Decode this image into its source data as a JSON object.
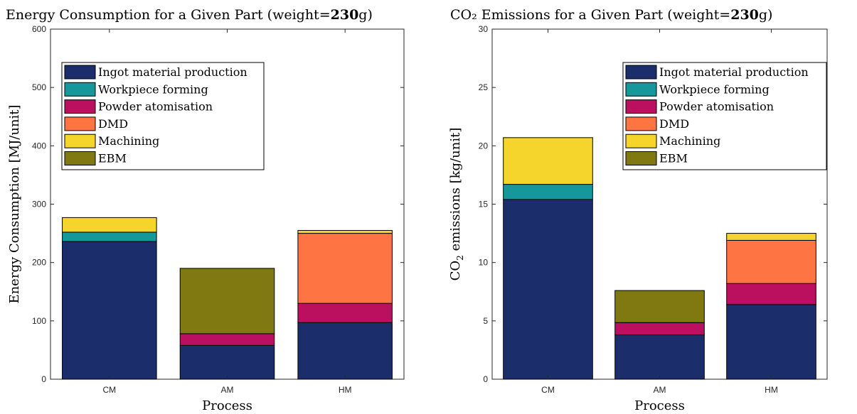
{
  "colors": {
    "Ingot material production": "#1b2e6b",
    "Workpiece forming": "#16979c",
    "Powder atomisation": "#bb1060",
    "DMD": "#fe7442",
    "Machining": "#f5d52b",
    "EBM": "#807912"
  },
  "chart_data": [
    {
      "type": "bar",
      "stacked": true,
      "title_prefix": "Energy Consumption for a Given Part (weight=",
      "title_bold": "230",
      "title_suffix": "g)",
      "xlabel": "Process",
      "ylabel": "Energy Consumption [MJ/unit]",
      "ylabel_main": "Energy Consumption [MJ/unit]",
      "ylabel_sub": "",
      "ylabel_rest": "",
      "ylim": [
        0,
        600
      ],
      "yticks": [
        "0",
        "100",
        "200",
        "300",
        "400",
        "500",
        "600"
      ],
      "categories": [
        "CM",
        "AM",
        "HM"
      ],
      "legend_position": "upper-left",
      "legend": [
        "Ingot material production",
        "Workpiece forming",
        "Powder atomisation",
        "DMD",
        "Machining",
        "EBM"
      ],
      "series": [
        {
          "name": "Ingot material production",
          "values": [
            236,
            58,
            97
          ]
        },
        {
          "name": "Workpiece forming",
          "values": [
            16,
            0,
            0
          ]
        },
        {
          "name": "Powder atomisation",
          "values": [
            0,
            20,
            33
          ]
        },
        {
          "name": "DMD",
          "values": [
            0,
            0,
            120
          ]
        },
        {
          "name": "Machining",
          "values": [
            25,
            0,
            5
          ]
        },
        {
          "name": "EBM",
          "values": [
            0,
            112,
            0
          ]
        }
      ]
    },
    {
      "type": "bar",
      "stacked": true,
      "title_prefix": "CO₂ Emissions for a Given Part (weight=",
      "title_bold": "230",
      "title_suffix": "g)",
      "xlabel": "Process",
      "ylabel": "CO₂ emissions [kg/unit]",
      "ylabel_main": "CO",
      "ylabel_sub": "2",
      "ylabel_rest": " emissions [kg/unit]",
      "ylim": [
        0,
        30
      ],
      "yticks": [
        "0",
        "5",
        "10",
        "15",
        "20",
        "25",
        "30"
      ],
      "categories": [
        "CM",
        "AM",
        "HM"
      ],
      "legend_position": "upper-right",
      "legend": [
        "Ingot material production",
        "Workpiece forming",
        "Powder atomisation",
        "DMD",
        "Machining",
        "EBM"
      ],
      "series": [
        {
          "name": "Ingot material production",
          "values": [
            15.4,
            3.8,
            6.4
          ]
        },
        {
          "name": "Workpiece forming",
          "values": [
            1.3,
            0,
            0
          ]
        },
        {
          "name": "Powder atomisation",
          "values": [
            0,
            1.05,
            1.8
          ]
        },
        {
          "name": "DMD",
          "values": [
            0,
            0,
            3.7
          ]
        },
        {
          "name": "Machining",
          "values": [
            4.0,
            0,
            0.6
          ]
        },
        {
          "name": "EBM",
          "values": [
            0,
            2.75,
            0
          ]
        }
      ]
    }
  ]
}
